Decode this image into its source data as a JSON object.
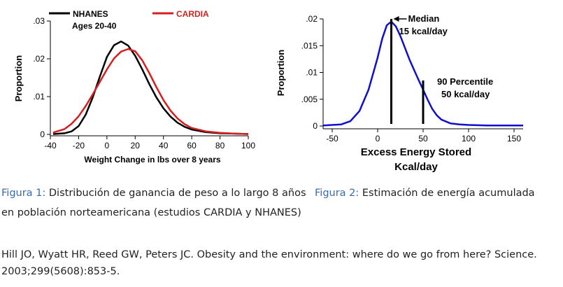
{
  "chart_data": [
    {
      "type": "line",
      "title": "",
      "xlabel": "Weight Change in lbs over 8 years",
      "ylabel": "Proportion",
      "xlim": [
        -40,
        100
      ],
      "ylim": [
        0,
        0.03
      ],
      "xticks": [
        -40,
        -20,
        0,
        20,
        40,
        60,
        80,
        100
      ],
      "xtick_labels": [
        "-40",
        "-20",
        "0",
        "20",
        "40",
        "60",
        "80",
        "100"
      ],
      "yticks": [
        0,
        0.01,
        0.02,
        0.03
      ],
      "ytick_labels": [
        "0",
        ".01",
        ".02",
        ".03"
      ],
      "legend": {
        "placement": "top",
        "note": "Ages 20-40"
      },
      "series": [
        {
          "name": "NHANES",
          "color": "#000000",
          "x": [
            -38,
            -30,
            -25,
            -20,
            -15,
            -10,
            -5,
            0,
            5,
            10,
            15,
            20,
            25,
            30,
            35,
            40,
            45,
            50,
            55,
            60,
            70,
            80,
            90,
            100
          ],
          "y": [
            0.0001,
            0.0003,
            0.0008,
            0.0022,
            0.0052,
            0.0098,
            0.0153,
            0.0205,
            0.0236,
            0.0246,
            0.0235,
            0.0208,
            0.0172,
            0.0133,
            0.0098,
            0.0069,
            0.0047,
            0.0031,
            0.002,
            0.0013,
            0.0006,
            0.0003,
            0.0002,
            0.0001
          ]
        },
        {
          "name": "CARDIA",
          "color": "#d42020",
          "x": [
            -38,
            -30,
            -25,
            -20,
            -15,
            -10,
            -5,
            0,
            5,
            10,
            15,
            20,
            25,
            30,
            35,
            40,
            45,
            50,
            55,
            60,
            70,
            80,
            90,
            100
          ],
          "y": [
            0.0005,
            0.0014,
            0.0028,
            0.0048,
            0.0075,
            0.0106,
            0.0139,
            0.0172,
            0.0201,
            0.0219,
            0.0226,
            0.022,
            0.0196,
            0.0162,
            0.0125,
            0.0091,
            0.0063,
            0.0042,
            0.0027,
            0.0017,
            0.0008,
            0.0004,
            0.0002,
            0.0001
          ]
        }
      ]
    },
    {
      "type": "line",
      "title": "",
      "xlabel": "Excess Energy Stored",
      "xlabel2": "Kcal/day",
      "ylabel": "Proportion",
      "xlim": [
        -60,
        160
      ],
      "ylim": [
        0,
        0.02
      ],
      "xticks": [
        -50,
        0,
        50,
        100,
        150
      ],
      "xtick_labels": [
        "-50",
        "0",
        "50",
        "100",
        "150"
      ],
      "yticks": [
        0,
        0.005,
        0.01,
        0.015,
        0.02
      ],
      "ytick_labels": [
        "0",
        ".005",
        ".01",
        ".015",
        ".02"
      ],
      "series": [
        {
          "name": "",
          "color": "#1010cc",
          "x": [
            -60,
            -40,
            -30,
            -20,
            -10,
            0,
            5,
            10,
            15,
            20,
            25,
            30,
            35,
            40,
            45,
            50,
            55,
            60,
            65,
            70,
            80,
            90,
            100,
            120,
            140,
            160
          ],
          "y": [
            0.0001,
            0.0003,
            0.0009,
            0.0028,
            0.0068,
            0.0128,
            0.0163,
            0.0188,
            0.0195,
            0.0186,
            0.0168,
            0.0146,
            0.0124,
            0.0105,
            0.0086,
            0.0068,
            0.0049,
            0.0032,
            0.002,
            0.0012,
            0.0005,
            0.0003,
            0.0002,
            0.0001,
            0.0001,
            0.0001
          ]
        }
      ],
      "annotations": [
        {
          "x": 15,
          "y_top": 0.02,
          "line1": "Median",
          "line2": "15 kcal/day"
        },
        {
          "x": 50,
          "y_top": 0.0085,
          "line1": "90 Percentile",
          "line2": "50 kcal/day"
        }
      ]
    }
  ],
  "captions": {
    "fig1_label": "Figura 1:",
    "fig1_text": "Distribución de ganancia de peso a lo largo 8 años en población norteamericana (estudios CARDIA y NHANES)",
    "fig2_label": "Figura 2:",
    "fig2_text": "Estimación de energía acumulada"
  },
  "reference": "Hill JO, Wyatt HR, Reed GW, Peters JC. Obesity and the environment: where do we go from here? Science. 2003;299(5608):853-5."
}
